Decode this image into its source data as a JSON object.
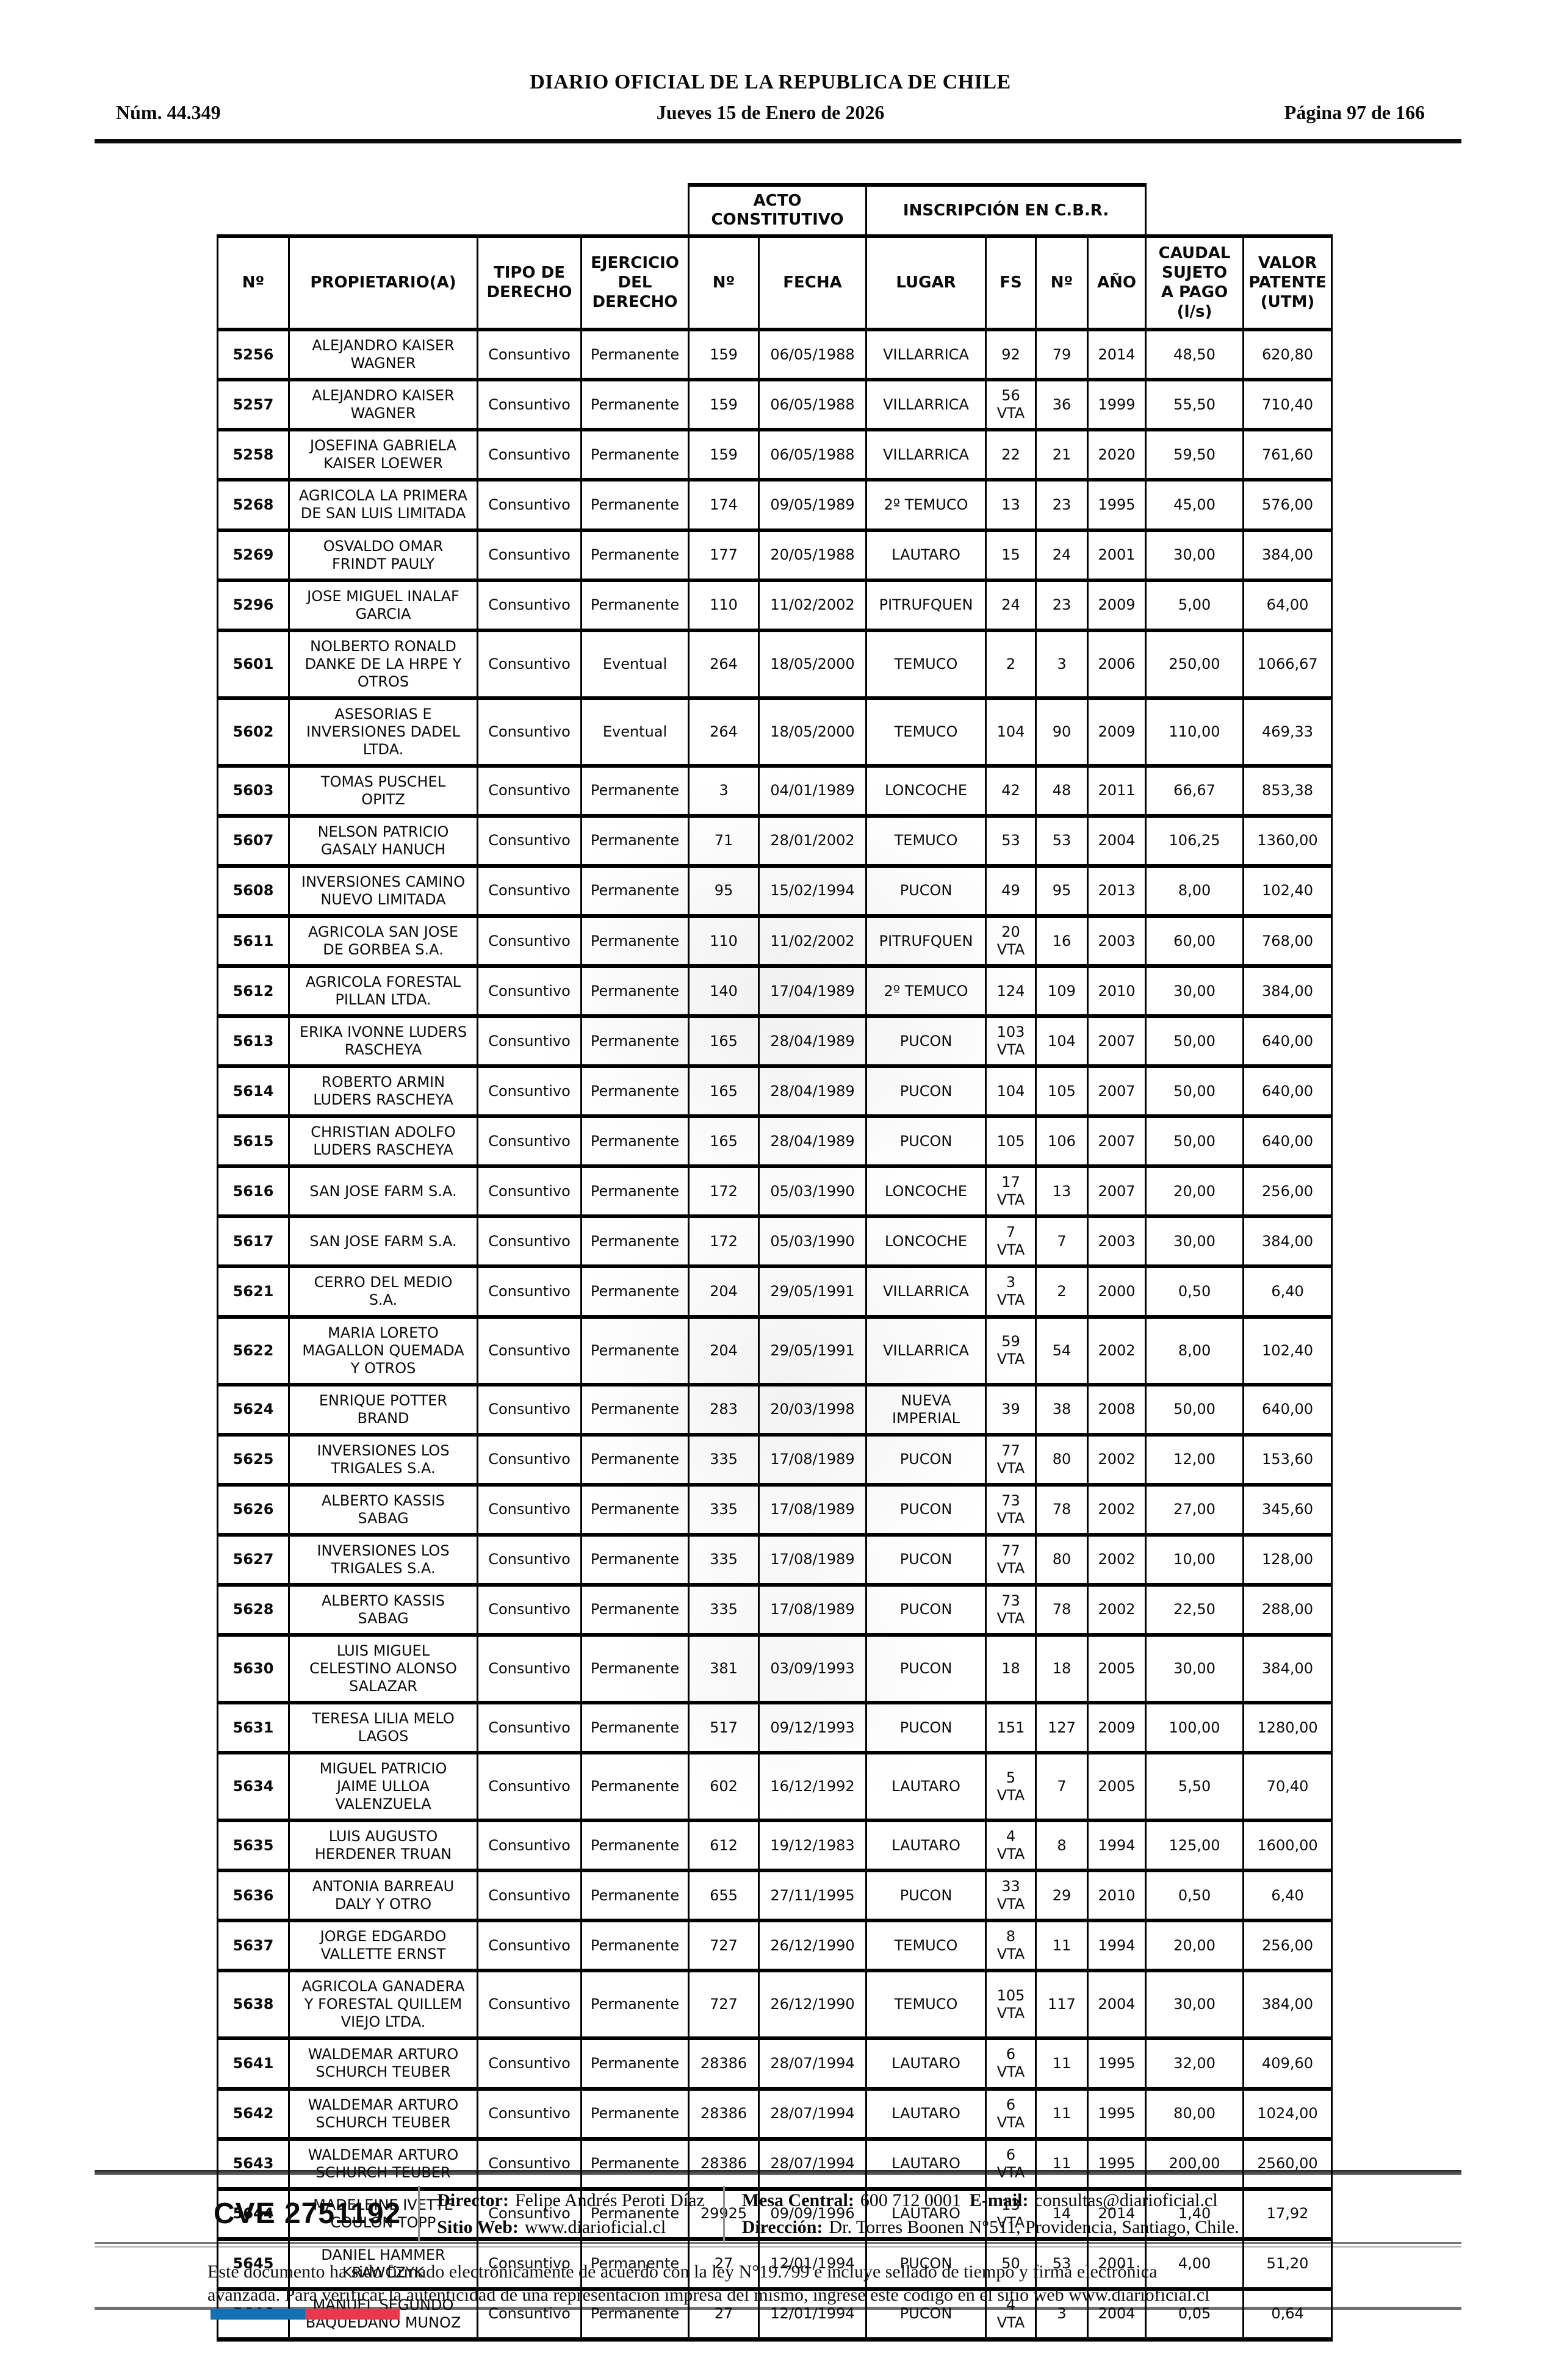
{
  "page_header": {
    "num": "Núm. 44.349",
    "title": "DIARIO OFICIAL DE LA REPUBLICA DE CHILE",
    "date": "Jueves 15 de Enero de 2026",
    "page": "Página 97 de 166"
  },
  "table": {
    "group_headers": {
      "acto": "ACTO\nCONSTITUTIVO",
      "inscripcion": "INSCRIPCIÓN EN C.B.R."
    },
    "columns": [
      "Nº",
      "PROPIETARIO(A)",
      "TIPO DE\nDERECHO",
      "EJERCICIO\nDEL\nDERECHO",
      "Nº",
      "FECHA",
      "LUGAR",
      "FS",
      "Nº",
      "AÑO",
      "CAUDAL\nSUJETO\nA PAGO\n(l/s)",
      "VALOR\nPATENTE\n(UTM)"
    ],
    "column_keys": [
      "num",
      "propietario",
      "tipo_derecho",
      "ejercicio_derecho",
      "acto_num",
      "acto_fecha",
      "lugar",
      "fs",
      "insc_num",
      "anio",
      "caudal",
      "valor"
    ],
    "rows": [
      [
        "5256",
        "ALEJANDRO KAISER WAGNER",
        "Consuntivo",
        "Permanente",
        "159",
        "06/05/1988",
        "VILLARRICA",
        "92",
        "79",
        "2014",
        "48,50",
        "620,80"
      ],
      [
        "5257",
        "ALEJANDRO KAISER WAGNER",
        "Consuntivo",
        "Permanente",
        "159",
        "06/05/1988",
        "VILLARRICA",
        "56\nVTA",
        "36",
        "1999",
        "55,50",
        "710,40"
      ],
      [
        "5258",
        "JOSEFINA GABRIELA KAISER LOEWER",
        "Consuntivo",
        "Permanente",
        "159",
        "06/05/1988",
        "VILLARRICA",
        "22",
        "21",
        "2020",
        "59,50",
        "761,60"
      ],
      [
        "5268",
        "AGRICOLA LA PRIMERA DE SAN LUIS LIMITADA",
        "Consuntivo",
        "Permanente",
        "174",
        "09/05/1989",
        "2º TEMUCO",
        "13",
        "23",
        "1995",
        "45,00",
        "576,00"
      ],
      [
        "5269",
        "OSVALDO OMAR FRINDT PAULY",
        "Consuntivo",
        "Permanente",
        "177",
        "20/05/1988",
        "LAUTARO",
        "15",
        "24",
        "2001",
        "30,00",
        "384,00"
      ],
      [
        "5296",
        "JOSE MIGUEL INALAF GARCIA",
        "Consuntivo",
        "Permanente",
        "110",
        "11/02/2002",
        "PITRUFQUEN",
        "24",
        "23",
        "2009",
        "5,00",
        "64,00"
      ],
      [
        "5601",
        "NOLBERTO RONALD DANKE DE LA HRPE Y OTROS",
        "Consuntivo",
        "Eventual",
        "264",
        "18/05/2000",
        "TEMUCO",
        "2",
        "3",
        "2006",
        "250,00",
        "1066,67"
      ],
      [
        "5602",
        "ASESORIAS E INVERSIONES DADEL LTDA.",
        "Consuntivo",
        "Eventual",
        "264",
        "18/05/2000",
        "TEMUCO",
        "104",
        "90",
        "2009",
        "110,00",
        "469,33"
      ],
      [
        "5603",
        "TOMAS PUSCHEL OPITZ",
        "Consuntivo",
        "Permanente",
        "3",
        "04/01/1989",
        "LONCOCHE",
        "42",
        "48",
        "2011",
        "66,67",
        "853,38"
      ],
      [
        "5607",
        "NELSON PATRICIO GASALY HANUCH",
        "Consuntivo",
        "Permanente",
        "71",
        "28/01/2002",
        "TEMUCO",
        "53",
        "53",
        "2004",
        "106,25",
        "1360,00"
      ],
      [
        "5608",
        "INVERSIONES CAMINO NUEVO LIMITADA",
        "Consuntivo",
        "Permanente",
        "95",
        "15/02/1994",
        "PUCON",
        "49",
        "95",
        "2013",
        "8,00",
        "102,40"
      ],
      [
        "5611",
        "AGRICOLA SAN JOSE DE GORBEA S.A.",
        "Consuntivo",
        "Permanente",
        "110",
        "11/02/2002",
        "PITRUFQUEN",
        "20\nVTA",
        "16",
        "2003",
        "60,00",
        "768,00"
      ],
      [
        "5612",
        "AGRICOLA FORESTAL PILLAN LTDA.",
        "Consuntivo",
        "Permanente",
        "140",
        "17/04/1989",
        "2º TEMUCO",
        "124",
        "109",
        "2010",
        "30,00",
        "384,00"
      ],
      [
        "5613",
        "ERIKA IVONNE LUDERS RASCHEYA",
        "Consuntivo",
        "Permanente",
        "165",
        "28/04/1989",
        "PUCON",
        "103\nVTA",
        "104",
        "2007",
        "50,00",
        "640,00"
      ],
      [
        "5614",
        "ROBERTO ARMIN LUDERS RASCHEYA",
        "Consuntivo",
        "Permanente",
        "165",
        "28/04/1989",
        "PUCON",
        "104",
        "105",
        "2007",
        "50,00",
        "640,00"
      ],
      [
        "5615",
        "CHRISTIAN ADOLFO LUDERS RASCHEYA",
        "Consuntivo",
        "Permanente",
        "165",
        "28/04/1989",
        "PUCON",
        "105",
        "106",
        "2007",
        "50,00",
        "640,00"
      ],
      [
        "5616",
        "SAN JOSE FARM S.A.",
        "Consuntivo",
        "Permanente",
        "172",
        "05/03/1990",
        "LONCOCHE",
        "17\nVTA",
        "13",
        "2007",
        "20,00",
        "256,00"
      ],
      [
        "5617",
        "SAN JOSE FARM S.A.",
        "Consuntivo",
        "Permanente",
        "172",
        "05/03/1990",
        "LONCOCHE",
        "7\nVTA",
        "7",
        "2003",
        "30,00",
        "384,00"
      ],
      [
        "5621",
        "CERRO DEL MEDIO S.A.",
        "Consuntivo",
        "Permanente",
        "204",
        "29/05/1991",
        "VILLARRICA",
        "3\nVTA",
        "2",
        "2000",
        "0,50",
        "6,40"
      ],
      [
        "5622",
        "MARIA LORETO MAGALLON QUEMADA Y OTROS",
        "Consuntivo",
        "Permanente",
        "204",
        "29/05/1991",
        "VILLARRICA",
        "59\nVTA",
        "54",
        "2002",
        "8,00",
        "102,40"
      ],
      [
        "5624",
        "ENRIQUE POTTER BRAND",
        "Consuntivo",
        "Permanente",
        "283",
        "20/03/1998",
        "NUEVA IMPERIAL",
        "39",
        "38",
        "2008",
        "50,00",
        "640,00"
      ],
      [
        "5625",
        "INVERSIONES LOS TRIGALES S.A.",
        "Consuntivo",
        "Permanente",
        "335",
        "17/08/1989",
        "PUCON",
        "77\nVTA",
        "80",
        "2002",
        "12,00",
        "153,60"
      ],
      [
        "5626",
        "ALBERTO KASSIS SABAG",
        "Consuntivo",
        "Permanente",
        "335",
        "17/08/1989",
        "PUCON",
        "73\nVTA",
        "78",
        "2002",
        "27,00",
        "345,60"
      ],
      [
        "5627",
        "INVERSIONES LOS TRIGALES S.A.",
        "Consuntivo",
        "Permanente",
        "335",
        "17/08/1989",
        "PUCON",
        "77\nVTA",
        "80",
        "2002",
        "10,00",
        "128,00"
      ],
      [
        "5628",
        "ALBERTO KASSIS SABAG",
        "Consuntivo",
        "Permanente",
        "335",
        "17/08/1989",
        "PUCON",
        "73\nVTA",
        "78",
        "2002",
        "22,50",
        "288,00"
      ],
      [
        "5630",
        "LUIS MIGUEL CELESTINO ALONSO SALAZAR",
        "Consuntivo",
        "Permanente",
        "381",
        "03/09/1993",
        "PUCON",
        "18",
        "18",
        "2005",
        "30,00",
        "384,00"
      ],
      [
        "5631",
        "TERESA LILIA MELO LAGOS",
        "Consuntivo",
        "Permanente",
        "517",
        "09/12/1993",
        "PUCON",
        "151",
        "127",
        "2009",
        "100,00",
        "1280,00"
      ],
      [
        "5634",
        "MIGUEL PATRICIO JAIME ULLOA VALENZUELA",
        "Consuntivo",
        "Permanente",
        "602",
        "16/12/1992",
        "LAUTARO",
        "5\nVTA",
        "7",
        "2005",
        "5,50",
        "70,40"
      ],
      [
        "5635",
        "LUIS AUGUSTO HERDENER TRUAN",
        "Consuntivo",
        "Permanente",
        "612",
        "19/12/1983",
        "LAUTARO",
        "4\nVTA",
        "8",
        "1994",
        "125,00",
        "1600,00"
      ],
      [
        "5636",
        "ANTONIA BARREAU DALY Y OTRO",
        "Consuntivo",
        "Permanente",
        "655",
        "27/11/1995",
        "PUCON",
        "33\nVTA",
        "29",
        "2010",
        "0,50",
        "6,40"
      ],
      [
        "5637",
        "JORGE EDGARDO VALLETTE ERNST",
        "Consuntivo",
        "Permanente",
        "727",
        "26/12/1990",
        "TEMUCO",
        "8\nVTA",
        "11",
        "1994",
        "20,00",
        "256,00"
      ],
      [
        "5638",
        "AGRICOLA GANADERA Y FORESTAL QUILLEM VIEJO LTDA.",
        "Consuntivo",
        "Permanente",
        "727",
        "26/12/1990",
        "TEMUCO",
        "105\nVTA",
        "117",
        "2004",
        "30,00",
        "384,00"
      ],
      [
        "5641",
        "WALDEMAR ARTURO SCHURCH TEUBER",
        "Consuntivo",
        "Permanente",
        "28386",
        "28/07/1994",
        "LAUTARO",
        "6\nVTA",
        "11",
        "1995",
        "32,00",
        "409,60"
      ],
      [
        "5642",
        "WALDEMAR ARTURO SCHURCH TEUBER",
        "Consuntivo",
        "Permanente",
        "28386",
        "28/07/1994",
        "LAUTARO",
        "6\nVTA",
        "11",
        "1995",
        "80,00",
        "1024,00"
      ],
      [
        "5643",
        "WALDEMAR ARTURO SCHURCH TEUBER",
        "Consuntivo",
        "Permanente",
        "28386",
        "28/07/1994",
        "LAUTARO",
        "6\nVTA",
        "11",
        "1995",
        "200,00",
        "2560,00"
      ],
      [
        "5644",
        "MADELEINE IVETTE COULON TOPP",
        "Consuntivo",
        "Permanente",
        "29925",
        "09/09/1996",
        "LAUTARO",
        "13\nVTA",
        "14",
        "2014",
        "1,40",
        "17,92"
      ],
      [
        "5645",
        "DANIEL HAMMER KRAWCZYK",
        "Consuntivo",
        "Permanente",
        "27",
        "12/01/1994",
        "PUCON",
        "50",
        "53",
        "2001",
        "4,00",
        "51,20"
      ],
      [
        "5646",
        "MANUEL SEGUNDO BAQUEDAÑO MUNOZ",
        "Consuntivo",
        "Permanente",
        "27",
        "12/01/1994",
        "PUCON",
        "4\nVTA",
        "3",
        "2004",
        "0,05",
        "0,64"
      ]
    ]
  },
  "footer": {
    "cve": "CVE 2751192",
    "director_label": "Director:",
    "director": "Felipe Andrés Peroti Díaz",
    "sitio_label": "Sitio Web:",
    "sitio": "www.diarioficial.cl",
    "mesa_label": "Mesa Central:",
    "mesa": "600 712 0001",
    "email_label": "E-mail:",
    "email": "consultas@diarioficial.cl",
    "direccion_label": "Dirección:",
    "direccion": "Dr. Torres Boonen N°511, Providencia, Santiago, Chile.",
    "legal_lines": [
      "Este documento ha sido firmado electrónicamente de acuerdo con la ley N°19.799 e incluye sellado de tiempo y firma electrónica",
      "avanzada. Para verificar la autenticidad de una representación impresa del mismo, ingrese este código en el sitio web www.diarioficial.cl"
    ],
    "flag_colors": {
      "blue": "#1470b5",
      "red": "#e8394c"
    }
  }
}
